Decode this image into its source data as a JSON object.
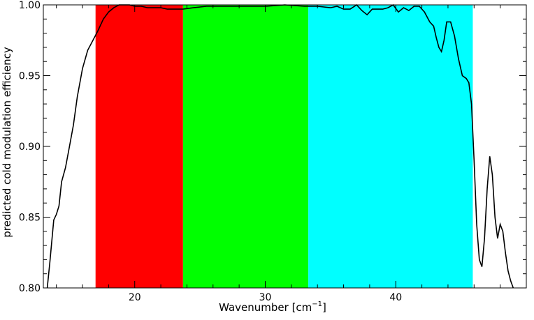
{
  "chart_data": {
    "type": "line",
    "xlabel": "Wavenumber [cm",
    "xlabel_sup": "−1",
    "xlabel_close": "]",
    "ylabel": "predicted cold modulation efficiency",
    "xlim": [
      13,
      50
    ],
    "ylim": [
      0.8,
      1.0
    ],
    "x_ticks": [
      20,
      30,
      40
    ],
    "x_tick_labels": [
      "20",
      "30",
      "40"
    ],
    "y_ticks": [
      0.8,
      0.85,
      0.9,
      0.95,
      1.0
    ],
    "y_tick_labels": [
      "0.80",
      "0.85",
      "0.90",
      "0.95",
      "1.00"
    ],
    "grid": false,
    "bands": [
      {
        "x0": 17.0,
        "x1": 23.7,
        "color": "#ff0000"
      },
      {
        "x0": 23.7,
        "x1": 33.3,
        "color": "#00ff00"
      },
      {
        "x0": 33.3,
        "x1": 45.9,
        "color": "#00ffff"
      }
    ],
    "series": [
      {
        "color": "#000000",
        "x": [
          13.3,
          13.5,
          13.8,
          14.0,
          14.2,
          14.4,
          14.7,
          15.0,
          15.3,
          15.6,
          16.0,
          16.4,
          16.8,
          17.2,
          17.6,
          18.0,
          18.4,
          18.8,
          19.2,
          19.6,
          20.0,
          20.5,
          21.0,
          21.5,
          22.0,
          22.5,
          23.0,
          23.7,
          24.5,
          25.5,
          27.0,
          28.5,
          30.0,
          31.5,
          33.0,
          34.0,
          35.0,
          35.5,
          36.0,
          36.5,
          37.0,
          37.4,
          37.8,
          38.2,
          38.6,
          39.0,
          39.4,
          39.8,
          40.2,
          40.6,
          41.0,
          41.4,
          41.8,
          42.2,
          42.6,
          42.9,
          43.1,
          43.3,
          43.5,
          43.7,
          43.9,
          44.2,
          44.5,
          44.8,
          45.1,
          45.4,
          45.6,
          45.8,
          46.0,
          46.2,
          46.4,
          46.6,
          46.8,
          47.0,
          47.2,
          47.4,
          47.6,
          47.8,
          48.0,
          48.2,
          48.4,
          48.6,
          48.8,
          49.0
        ],
        "y": [
          0.8,
          0.818,
          0.848,
          0.852,
          0.858,
          0.875,
          0.885,
          0.9,
          0.915,
          0.935,
          0.955,
          0.968,
          0.975,
          0.982,
          0.99,
          0.995,
          0.998,
          1.0,
          1.0,
          1.0,
          0.999,
          0.999,
          0.998,
          0.998,
          0.998,
          0.997,
          0.997,
          0.997,
          0.998,
          0.999,
          0.999,
          0.999,
          0.999,
          1.0,
          0.999,
          0.999,
          0.998,
          0.999,
          0.997,
          0.997,
          1.0,
          0.996,
          0.993,
          0.997,
          0.997,
          0.997,
          0.998,
          1.0,
          0.995,
          0.998,
          0.996,
          0.999,
          0.999,
          0.995,
          0.988,
          0.985,
          0.977,
          0.97,
          0.967,
          0.975,
          0.988,
          0.988,
          0.978,
          0.962,
          0.95,
          0.948,
          0.945,
          0.93,
          0.89,
          0.845,
          0.82,
          0.815,
          0.835,
          0.87,
          0.893,
          0.88,
          0.85,
          0.835,
          0.845,
          0.84,
          0.825,
          0.812,
          0.805,
          0.8
        ]
      }
    ]
  }
}
